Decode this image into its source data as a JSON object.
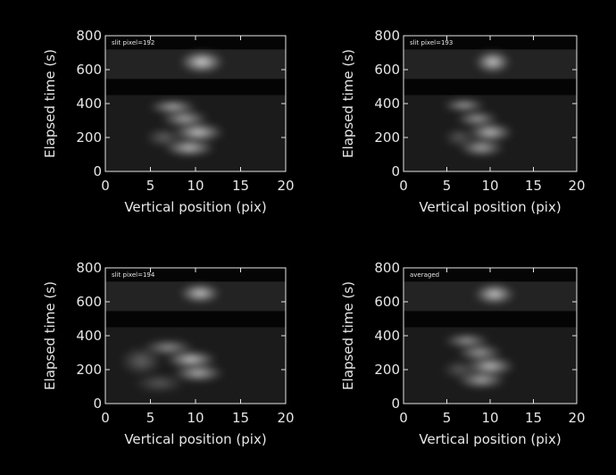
{
  "chart_data": [
    {
      "type": "heatmap",
      "panel_label": "slit pixel=192",
      "xlabel": "Vertical position (pix)",
      "ylabel": "Elapsed time (s)",
      "xlim": [
        0,
        20
      ],
      "ylim": [
        0,
        800
      ],
      "xticks": [
        "0",
        "5",
        "10",
        "15",
        "20"
      ],
      "yticks": [
        "0",
        "200",
        "400",
        "600",
        "800"
      ],
      "colormap": "grayscale",
      "data_gap_t": [
        450,
        545
      ],
      "dark_band_t": [
        720,
        800
      ],
      "features": [
        {
          "kind": "emission",
          "x": 10.7,
          "t": 645,
          "width": 2.6,
          "height": 70,
          "intensity": 0.9
        },
        {
          "kind": "emission",
          "x": 7.5,
          "t": 380,
          "width": 2.8,
          "height": 45,
          "intensity": 0.75
        },
        {
          "kind": "emission",
          "x": 8.8,
          "t": 310,
          "width": 2.8,
          "height": 55,
          "intensity": 0.7
        },
        {
          "kind": "emission",
          "x": 10.3,
          "t": 230,
          "width": 3.0,
          "height": 60,
          "intensity": 0.85
        },
        {
          "kind": "emission",
          "x": 9.3,
          "t": 140,
          "width": 3.0,
          "height": 55,
          "intensity": 0.8
        },
        {
          "kind": "emission",
          "x": 6.5,
          "t": 200,
          "width": 2.2,
          "height": 60,
          "intensity": 0.35
        }
      ]
    },
    {
      "type": "heatmap",
      "panel_label": "slit pixel=193",
      "xlabel": "Vertical position (pix)",
      "ylabel": "Elapsed time (s)",
      "xlim": [
        0,
        20
      ],
      "ylim": [
        0,
        800
      ],
      "xticks": [
        "0",
        "5",
        "10",
        "15",
        "20"
      ],
      "yticks": [
        "0",
        "200",
        "400",
        "600",
        "800"
      ],
      "colormap": "grayscale",
      "data_gap_t": [
        450,
        545
      ],
      "dark_band_t": [
        720,
        800
      ],
      "features": [
        {
          "kind": "emission",
          "x": 10.3,
          "t": 645,
          "width": 2.2,
          "height": 70,
          "intensity": 0.85
        },
        {
          "kind": "emission",
          "x": 7.0,
          "t": 390,
          "width": 2.6,
          "height": 40,
          "intensity": 0.7
        },
        {
          "kind": "emission",
          "x": 8.5,
          "t": 310,
          "width": 2.6,
          "height": 50,
          "intensity": 0.65
        },
        {
          "kind": "emission",
          "x": 10.0,
          "t": 230,
          "width": 2.8,
          "height": 60,
          "intensity": 0.8
        },
        {
          "kind": "emission",
          "x": 9.0,
          "t": 140,
          "width": 2.8,
          "height": 55,
          "intensity": 0.7
        },
        {
          "kind": "emission",
          "x": 6.5,
          "t": 200,
          "width": 2.0,
          "height": 60,
          "intensity": 0.3
        }
      ]
    },
    {
      "type": "heatmap",
      "panel_label": "slit pixel=194",
      "xlabel": "Vertical position (pix)",
      "ylabel": "Elapsed time (s)",
      "xlim": [
        0,
        20
      ],
      "ylim": [
        0,
        800
      ],
      "xticks": [
        "0",
        "5",
        "10",
        "15",
        "20"
      ],
      "yticks": [
        "0",
        "200",
        "400",
        "600",
        "800"
      ],
      "colormap": "grayscale",
      "data_gap_t": [
        450,
        545
      ],
      "dark_band_t": [
        720,
        800
      ],
      "features": [
        {
          "kind": "emission",
          "x": 10.5,
          "t": 650,
          "width": 2.4,
          "height": 60,
          "intensity": 0.85
        },
        {
          "kind": "emission",
          "x": 7.0,
          "t": 330,
          "width": 3.0,
          "height": 50,
          "intensity": 0.6
        },
        {
          "kind": "emission",
          "x": 9.5,
          "t": 260,
          "width": 3.0,
          "height": 55,
          "intensity": 0.85
        },
        {
          "kind": "emission",
          "x": 10.3,
          "t": 180,
          "width": 3.0,
          "height": 55,
          "intensity": 0.75
        },
        {
          "kind": "emission",
          "x": 4.0,
          "t": 250,
          "width": 2.5,
          "height": 90,
          "intensity": 0.35
        },
        {
          "kind": "emission",
          "x": 6.0,
          "t": 120,
          "width": 3.0,
          "height": 60,
          "intensity": 0.3
        }
      ]
    },
    {
      "type": "heatmap",
      "panel_label": "averaged",
      "xlabel": "Vertical position (pix)",
      "ylabel": "Elapsed time (s)",
      "xlim": [
        0,
        20
      ],
      "ylim": [
        0,
        800
      ],
      "xticks": [
        "0",
        "5",
        "10",
        "15",
        "20"
      ],
      "yticks": [
        "0",
        "200",
        "400",
        "600",
        "800"
      ],
      "colormap": "grayscale",
      "data_gap_t": [
        450,
        545
      ],
      "dark_band_t": [
        720,
        800
      ],
      "features": [
        {
          "kind": "emission",
          "x": 10.5,
          "t": 645,
          "width": 2.5,
          "height": 65,
          "intensity": 0.85
        },
        {
          "kind": "emission",
          "x": 7.3,
          "t": 370,
          "width": 2.8,
          "height": 45,
          "intensity": 0.65
        },
        {
          "kind": "emission",
          "x": 8.8,
          "t": 300,
          "width": 2.8,
          "height": 55,
          "intensity": 0.65
        },
        {
          "kind": "emission",
          "x": 10.0,
          "t": 220,
          "width": 3.0,
          "height": 60,
          "intensity": 0.8
        },
        {
          "kind": "emission",
          "x": 9.0,
          "t": 140,
          "width": 3.0,
          "height": 55,
          "intensity": 0.7
        },
        {
          "kind": "emission",
          "x": 6.5,
          "t": 200,
          "width": 2.2,
          "height": 60,
          "intensity": 0.3
        }
      ]
    }
  ]
}
